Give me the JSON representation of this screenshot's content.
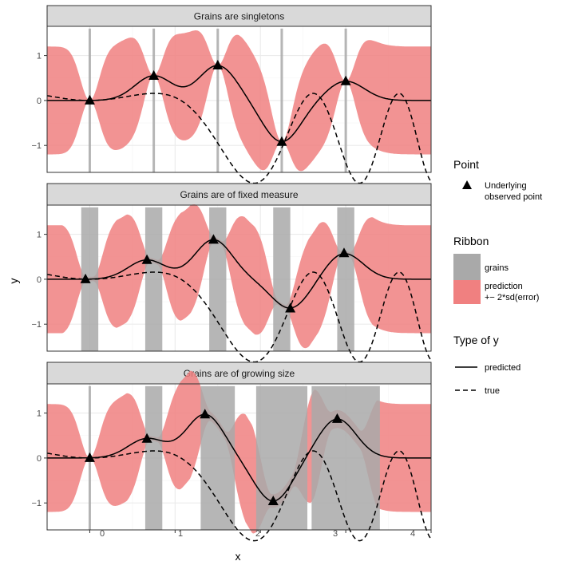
{
  "figure": {
    "xlabel": "x",
    "ylabel": "y",
    "x_ticks": [
      "0",
      "1",
      "2",
      "3",
      "4"
    ],
    "y_ticks": [
      "1",
      "0",
      "−1"
    ]
  },
  "legend": {
    "point_title": "Point",
    "point_label_line1": "Underlying",
    "point_label_line2": "observed point",
    "ribbon_title": "Ribbon",
    "grains_label": "grains",
    "prediction_label_line1": "prediction",
    "prediction_label_line2": "+− 2*sd(error)",
    "type_title": "Type of y",
    "predicted_label": "predicted",
    "true_label": "true"
  },
  "colors": {
    "ribbon": "#F08080",
    "grain": "#A9A9A9",
    "strip": "#D9D9D9",
    "grid_major": "#EBEBEB",
    "grid_minor": "#F5F5F5"
  },
  "chart_data": [
    {
      "type": "line",
      "title": "Grains are singletons",
      "xlim": [
        -0.5,
        4.0
      ],
      "ylim": [
        -1.6,
        1.65
      ],
      "true_curve": "y = sin(x^2 + 1) - sin(1)",
      "points": [
        {
          "x": 0.0,
          "y": 0.0
        },
        {
          "x": 0.75,
          "y": 0.55
        },
        {
          "x": 1.5,
          "y": 0.78
        },
        {
          "x": 2.25,
          "y": -0.92
        },
        {
          "x": 3.0,
          "y": 0.43
        }
      ],
      "grains": [
        {
          "x": [
            0.0,
            0.0
          ]
        },
        {
          "x": [
            0.75,
            0.75
          ]
        },
        {
          "x": [
            1.5,
            1.5
          ]
        },
        {
          "x": [
            2.25,
            2.25
          ]
        },
        {
          "x": [
            3.0,
            3.0
          ]
        }
      ],
      "ribbon_half_width_max": 1.2
    },
    {
      "type": "line",
      "title": "Grains are of fixed measure",
      "xlim": [
        -0.5,
        4.0
      ],
      "ylim": [
        -1.6,
        1.65
      ],
      "true_curve": "y = sin(x^2 + 1) - sin(1)",
      "points": [
        {
          "x": -0.05,
          "y": 0.0
        },
        {
          "x": 0.67,
          "y": 0.43
        },
        {
          "x": 1.45,
          "y": 0.88
        },
        {
          "x": 2.35,
          "y": -0.65
        },
        {
          "x": 2.98,
          "y": 0.58
        }
      ],
      "grains": [
        {
          "x": [
            -0.1,
            0.1
          ]
        },
        {
          "x": [
            0.65,
            0.85
          ]
        },
        {
          "x": [
            1.4,
            1.6
          ]
        },
        {
          "x": [
            2.15,
            2.35
          ]
        },
        {
          "x": [
            2.9,
            3.1
          ]
        }
      ],
      "ribbon_half_width_max": 1.2
    },
    {
      "type": "line",
      "title": "Grains are of growing size",
      "xlim": [
        -0.5,
        4.0
      ],
      "ylim": [
        -1.6,
        1.65
      ],
      "true_curve": "y = sin(x^2 + 1) - sin(1)",
      "points": [
        {
          "x": 0.0,
          "y": 0.0
        },
        {
          "x": 0.67,
          "y": 0.43
        },
        {
          "x": 1.35,
          "y": 0.97
        },
        {
          "x": 2.15,
          "y": -0.96
        },
        {
          "x": 2.9,
          "y": 0.87
        }
      ],
      "grains": [
        {
          "x": [
            0.0,
            0.0
          ]
        },
        {
          "x": [
            0.65,
            0.85
          ]
        },
        {
          "x": [
            1.3,
            1.7
          ]
        },
        {
          "x": [
            1.95,
            2.55
          ]
        },
        {
          "x": [
            2.6,
            3.4
          ]
        }
      ],
      "ribbon_half_width_max": 1.2
    }
  ]
}
